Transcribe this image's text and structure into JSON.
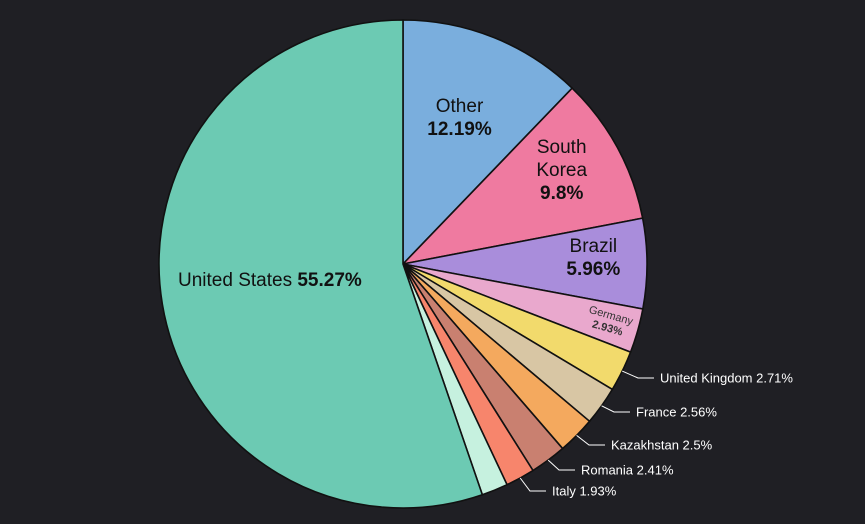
{
  "chart_data": {
    "type": "pie",
    "start_angle_deg": 0,
    "direction": "clockwise",
    "slices": [
      {
        "label": "Other",
        "value": 12.19,
        "pct_text": "12.19%",
        "color": "#7aaedd",
        "text_color": "#111111",
        "label_style": "inside-stacked",
        "lines": [
          "Other"
        ]
      },
      {
        "label": "South Korea",
        "value": 9.8,
        "pct_text": "9.8%",
        "color": "#ef7aa0",
        "text_color": "#111111",
        "label_style": "inside-stacked",
        "lines": [
          "South",
          "Korea"
        ]
      },
      {
        "label": "Brazil",
        "value": 5.96,
        "pct_text": "5.96%",
        "color": "#a98ddb",
        "text_color": "#111111",
        "label_style": "inside-stacked",
        "lines": [
          "Brazil"
        ]
      },
      {
        "label": "Germany",
        "value": 2.93,
        "pct_text": "2.93%",
        "color": "#e9a8cd",
        "text_color": "#333333",
        "label_style": "inside-small",
        "lines": [
          "Germany"
        ]
      },
      {
        "label": "United Kingdom",
        "value": 2.71,
        "pct_text": "2.71%",
        "color": "#f2da6c",
        "text_color": "#ffffff",
        "label_style": "callout"
      },
      {
        "label": "France",
        "value": 2.56,
        "pct_text": "2.56%",
        "color": "#d8c6a4",
        "text_color": "#ffffff",
        "label_style": "callout"
      },
      {
        "label": "Kazakhstan",
        "value": 2.5,
        "pct_text": "2.5%",
        "color": "#f4a95e",
        "text_color": "#ffffff",
        "label_style": "callout"
      },
      {
        "label": "Romania",
        "value": 2.41,
        "pct_text": "2.41%",
        "color": "#c98070",
        "text_color": "#ffffff",
        "label_style": "callout"
      },
      {
        "label": "Italy",
        "value": 1.93,
        "pct_text": "1.93%",
        "color": "#f7856c",
        "text_color": "#ffffff",
        "label_style": "callout"
      },
      {
        "label": "",
        "value": 1.74,
        "pct_text": "",
        "color": "#c6f1df",
        "text_color": "#ffffff",
        "label_style": "none"
      },
      {
        "label": "United States",
        "value": 55.27,
        "pct_text": "55.27%",
        "color": "#6ccab3",
        "text_color": "#111111",
        "label_style": "inline"
      }
    ]
  }
}
